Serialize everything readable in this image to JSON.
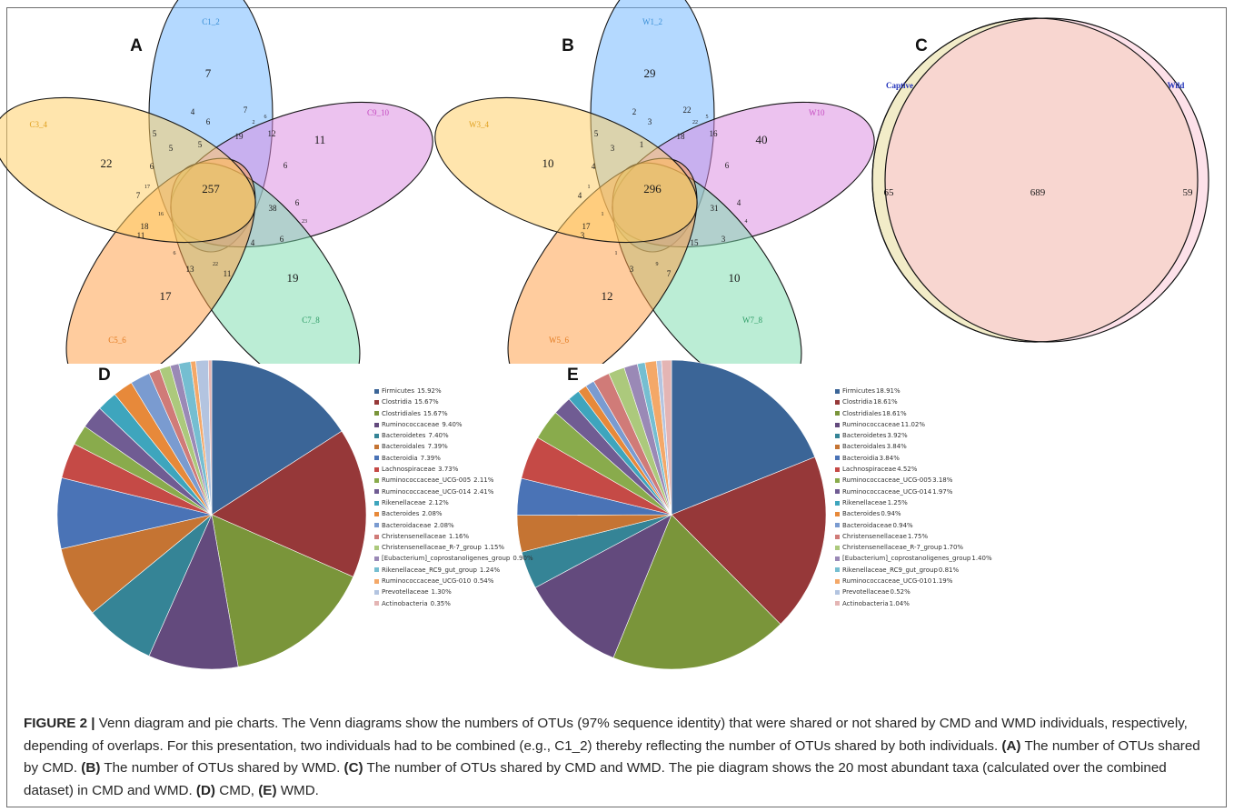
{
  "chart_data": [
    {
      "type": "venn",
      "panel": "A",
      "sets": [
        {
          "name": "C1_2",
          "color": "#3a8fd6",
          "fill": "#6fb6ff"
        },
        {
          "name": "C9_10",
          "color": "#c44ac0",
          "fill": "#da8be0"
        },
        {
          "name": "C7_8",
          "color": "#2e9c66",
          "fill": "#7cdcae"
        },
        {
          "name": "C5_6",
          "color": "#e37b20",
          "fill": "#ff9d45"
        },
        {
          "name": "C3_4",
          "color": "#e0a020",
          "fill": "#ffce62"
        }
      ],
      "regions": {
        "core": "257",
        "unique": [
          "7",
          "11",
          "19",
          "17",
          "22"
        ],
        "other": [
          "4",
          "6",
          "7",
          "2",
          "5",
          "19",
          "12",
          "6",
          "38",
          "6",
          "23",
          "6",
          "4",
          "11",
          "22",
          "13",
          "11",
          "16",
          "18",
          "6",
          "7",
          "5",
          "5",
          "6",
          "17",
          "6"
        ]
      }
    },
    {
      "type": "venn",
      "panel": "B",
      "sets": [
        {
          "name": "W1_2",
          "color": "#3a8fd6",
          "fill": "#6fb6ff"
        },
        {
          "name": "W10",
          "color": "#c44ac0",
          "fill": "#da8be0"
        },
        {
          "name": "W7_8",
          "color": "#2e9c66",
          "fill": "#7cdcae"
        },
        {
          "name": "W5_6",
          "color": "#e37b20",
          "fill": "#ff9d45"
        },
        {
          "name": "W3_4",
          "color": "#e0a020",
          "fill": "#ffce62"
        }
      ],
      "regions": {
        "core": "296",
        "unique": [
          "29",
          "40",
          "10",
          "12",
          "10"
        ],
        "other": [
          "2",
          "3",
          "22",
          "22",
          "5",
          "18",
          "16",
          "6",
          "31",
          "4",
          "4",
          "3",
          "15",
          "7",
          "9",
          "3",
          "3",
          "1",
          "17",
          "4",
          "4",
          "3",
          "1",
          "5",
          "1",
          "1"
        ]
      }
    },
    {
      "type": "venn",
      "panel": "C",
      "sets": [
        {
          "name": "Captive",
          "only": "65"
        },
        {
          "name": "Wild",
          "only": "59"
        }
      ],
      "shared": "689",
      "colors": {
        "captive": "#f2ecc8",
        "wild": "#fde1e9",
        "overlap": "#f8d6d0",
        "label": "#2233bb"
      }
    },
    {
      "type": "pie",
      "panel": "D",
      "legend_position": "right",
      "slices": [
        {
          "label": "Firmicutes",
          "pct_text": "15.92%",
          "value": 15.92,
          "color": "#3b6597"
        },
        {
          "label": "Clostridia",
          "pct_text": "15.67%",
          "value": 15.67,
          "color": "#963839"
        },
        {
          "label": "Clostridiales",
          "pct_text": "15.67%",
          "value": 15.67,
          "color": "#7a953a"
        },
        {
          "label": "Ruminococcaceae",
          "pct_text": "9.40%",
          "value": 9.4,
          "color": "#634a7d"
        },
        {
          "label": "Bacteroidetes",
          "pct_text": "7.40%",
          "value": 7.4,
          "color": "#358496"
        },
        {
          "label": "Bacteroidales",
          "pct_text": "7.39%",
          "value": 7.39,
          "color": "#c57433"
        },
        {
          "label": "Bacteroidia",
          "pct_text": "7.39%",
          "value": 7.39,
          "color": "#4a73b6"
        },
        {
          "label": "Lachnospiraceae",
          "pct_text": "3.73%",
          "value": 3.73,
          "color": "#c54a46"
        },
        {
          "label": "Ruminococcaceae_UCG-005",
          "pct_text": "2.11%",
          "value": 2.11,
          "color": "#89ab4c"
        },
        {
          "label": "Ruminococcaceae_UCG-014",
          "pct_text": "2.41%",
          "value": 2.41,
          "color": "#705c93"
        },
        {
          "label": "Rikenellaceae",
          "pct_text": "2.12%",
          "value": 2.12,
          "color": "#3ea5bd"
        },
        {
          "label": "Bacteroides",
          "pct_text": "2.08%",
          "value": 2.08,
          "color": "#e7893a"
        },
        {
          "label": "Bacteroidaceae",
          "pct_text": "2.08%",
          "value": 2.08,
          "color": "#7a9bd0"
        },
        {
          "label": "Christensenellaceae",
          "pct_text": "1.16%",
          "value": 1.16,
          "color": "#d07b78"
        },
        {
          "label": "Christensenellaceae_R-7_group",
          "pct_text": "1.15%",
          "value": 1.15,
          "color": "#acc97c"
        },
        {
          "label": "[Eubacterium]_coprostanoligenes_group",
          "pct_text": "0.90%",
          "value": 0.9,
          "color": "#9a89b6"
        },
        {
          "label": "Rikenellaceae_RC9_gut_group",
          "pct_text": "1.24%",
          "value": 1.24,
          "color": "#75bed1"
        },
        {
          "label": "Ruminococcaceae_UCG-010",
          "pct_text": "0.54%",
          "value": 0.54,
          "color": "#f4a868"
        },
        {
          "label": "Prevotellaceae",
          "pct_text": "1.30%",
          "value": 1.3,
          "color": "#b3c4e0"
        },
        {
          "label": "Actinobacteria",
          "pct_text": "0.35%",
          "value": 0.35,
          "color": "#e4b5b4"
        }
      ]
    },
    {
      "type": "pie",
      "panel": "E",
      "legend_position": "right",
      "slices": [
        {
          "label": "Firmicutes",
          "pct_text": "18.91%",
          "value": 18.91,
          "color": "#3b6597"
        },
        {
          "label": "Clostridia",
          "pct_text": "18.61%",
          "value": 18.61,
          "color": "#963839"
        },
        {
          "label": "Clostridiales",
          "pct_text": "18.61%",
          "value": 18.61,
          "color": "#7a953a"
        },
        {
          "label": "Ruminococcaceae",
          "pct_text": "11.02%",
          "value": 11.02,
          "color": "#634a7d"
        },
        {
          "label": "Bacteroidetes",
          "pct_text": "3.92%",
          "value": 3.92,
          "color": "#358496"
        },
        {
          "label": "Bacteroidales",
          "pct_text": "3.84%",
          "value": 3.84,
          "color": "#c57433"
        },
        {
          "label": "Bacteroidia",
          "pct_text": "3.84%",
          "value": 3.84,
          "color": "#4a73b6"
        },
        {
          "label": "Lachnospiraceae",
          "pct_text": "4.52%",
          "value": 4.52,
          "color": "#c54a46"
        },
        {
          "label": "Ruminococcaceae_UCG-005",
          "pct_text": "3.18%",
          "value": 3.18,
          "color": "#89ab4c"
        },
        {
          "label": "Ruminococcaceae_UCG-014",
          "pct_text": "1.97%",
          "value": 1.97,
          "color": "#705c93"
        },
        {
          "label": "Rikenellaceae",
          "pct_text": "1.25%",
          "value": 1.25,
          "color": "#3ea5bd"
        },
        {
          "label": "Bacteroides",
          "pct_text": "0.94%",
          "value": 0.94,
          "color": "#e7893a"
        },
        {
          "label": "Bacteroidaceae",
          "pct_text": "0.94%",
          "value": 0.94,
          "color": "#7a9bd0"
        },
        {
          "label": "Christensenellaceae",
          "pct_text": "1.75%",
          "value": 1.75,
          "color": "#d07b78"
        },
        {
          "label": "Christensenellaceae_R-7_group",
          "pct_text": "1.70%",
          "value": 1.7,
          "color": "#acc97c"
        },
        {
          "label": "[Eubacterium]_coprostanoligenes_group",
          "pct_text": "1.40%",
          "value": 1.4,
          "color": "#9a89b6"
        },
        {
          "label": "Rikenellaceae_RC9_gut_group",
          "pct_text": "0.81%",
          "value": 0.81,
          "color": "#75bed1"
        },
        {
          "label": "Ruminococcaceae_UCG-010",
          "pct_text": "1.19%",
          "value": 1.19,
          "color": "#f4a868"
        },
        {
          "label": "Prevotellaceae",
          "pct_text": "0.52%",
          "value": 0.52,
          "color": "#b3c4e0"
        },
        {
          "label": "Actinobacteria",
          "pct_text": "1.04%",
          "value": 1.04,
          "color": "#e4b5b4"
        }
      ]
    }
  ],
  "caption": {
    "figure_label": "FIGURE 2 |",
    "intro": " Venn diagram and pie charts. The Venn diagrams show the numbers of OTUs (97% sequence identity) that were shared or not shared by CMD and WMD individuals, respectively, depending of overlaps. For this presentation, two individuals had to be combined (e.g., C1_2) thereby reflecting the number of OTUs shared by both individuals. ",
    "a_label": "(A)",
    "a_text": " The number of OTUs shared by CMD. ",
    "b_label": "(B)",
    "b_text": " The number of OTUs shared by WMD. ",
    "c_label": "(C)",
    "c_text": " The number of OTUs shared by CMD and WMD. The pie diagram shows the 20 most abundant taxa (calculated over the combined dataset) in CMD and WMD. ",
    "d_label": "(D)",
    "d_text": " CMD, ",
    "e_label": "(E)",
    "e_text": " WMD."
  }
}
